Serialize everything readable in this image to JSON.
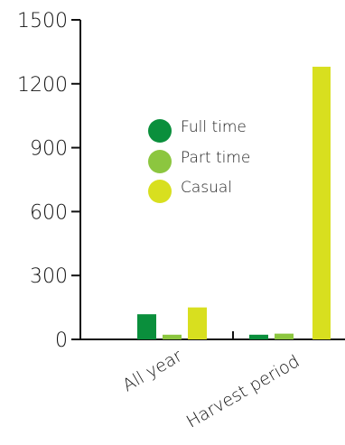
{
  "chart_data": {
    "type": "bar",
    "categories": [
      "All year",
      "Harvest period"
    ],
    "series": [
      {
        "name": "Full time",
        "color": "#0a8f3c",
        "values": [
          118,
          22
        ]
      },
      {
        "name": "Part time",
        "color": "#8cc63f",
        "values": [
          22,
          27
        ]
      },
      {
        "name": "Casual",
        "color": "#d8df1f",
        "values": [
          150,
          1280
        ]
      }
    ],
    "yticks": [
      0,
      300,
      600,
      900,
      1200,
      1500
    ],
    "ylim": [
      0,
      1500
    ],
    "title": "",
    "xlabel": "",
    "ylabel": "",
    "legend_position": "center-left",
    "grid": false
  }
}
